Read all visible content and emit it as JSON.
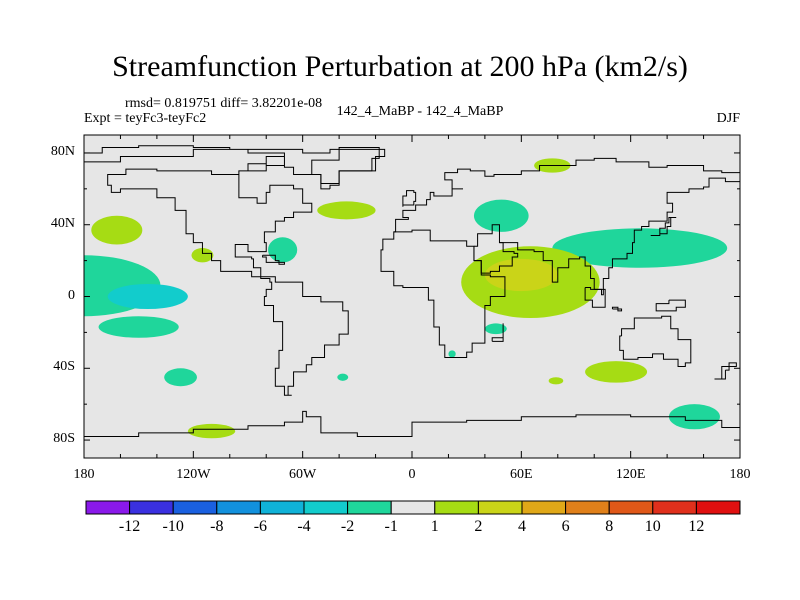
{
  "title": "Streamfunction Perturbation at 200 hPa (km2/s)",
  "stats": "rmsd= 0.819751 diff= 3.82201e-08",
  "experiment": "Expt = teyFc3-teyFc2",
  "comparison": "142_4_MaBP - 142_4_MaBP",
  "season": "DJF",
  "chart_data": {
    "type": "contour-map",
    "variable": "Streamfunction Perturbation",
    "units": "km2/s",
    "level": "200 hPa",
    "lon_range": [
      -180,
      180
    ],
    "lat_range": [
      -90,
      90
    ],
    "y_ticks": [
      {
        "lat": 80,
        "label": "80N"
      },
      {
        "lat": 40,
        "label": "40N"
      },
      {
        "lat": 0,
        "label": "0"
      },
      {
        "lat": -40,
        "label": "40S"
      },
      {
        "lat": -80,
        "label": "80S"
      }
    ],
    "x_ticks": [
      {
        "lon": -180,
        "label": "180"
      },
      {
        "lon": -120,
        "label": "120W"
      },
      {
        "lon": -60,
        "label": "60W"
      },
      {
        "lon": 0,
        "label": "0"
      },
      {
        "lon": 60,
        "label": "60E"
      },
      {
        "lon": 120,
        "label": "120E"
      },
      {
        "lon": 180,
        "label": "180"
      }
    ],
    "colorbar": {
      "levels": [
        "-12",
        "-10",
        "-8",
        "-6",
        "-4",
        "-2",
        "-1",
        "1",
        "2",
        "4",
        "6",
        "8",
        "10",
        "12"
      ],
      "colors": [
        "#8a19ea",
        "#3a30e0",
        "#1a60e0",
        "#1291dd",
        "#10b2d8",
        "#12cccc",
        "#1fd69b",
        "#e6e6e6",
        "#a6dc14",
        "#cad418",
        "#e0a818",
        "#e0801a",
        "#e05818",
        "#e0301c",
        "#e01010"
      ]
    },
    "features": [
      {
        "name": "south-pacific-negative",
        "lon": -180,
        "lat": 6,
        "rx": 42,
        "ry": 17,
        "color": "#1fd69b"
      },
      {
        "name": "south-pacific-core",
        "lon": -145,
        "lat": 0,
        "rx": 22,
        "ry": 7,
        "color": "#12cccc"
      },
      {
        "name": "north-pacific-blob",
        "lon": -162,
        "lat": 37,
        "rx": 14,
        "ry": 8,
        "color": "#a6dc14"
      },
      {
        "name": "hawaii-blob",
        "lon": -115,
        "lat": 23,
        "rx": 6,
        "ry": 4,
        "color": "#a6dc14"
      },
      {
        "name": "sp-negative-band",
        "lon": -150,
        "lat": -17,
        "rx": 22,
        "ry": 6,
        "color": "#1fd69b"
      },
      {
        "name": "sp-negative-south",
        "lon": -127,
        "lat": -45,
        "rx": 9,
        "ry": 5,
        "color": "#1fd69b"
      },
      {
        "name": "sp-positive-south",
        "lon": -110,
        "lat": -75,
        "rx": 13,
        "ry": 4,
        "color": "#a6dc14"
      },
      {
        "name": "gulf-negative",
        "lon": -71,
        "lat": 26,
        "rx": 8,
        "ry": 7,
        "color": "#1fd69b"
      },
      {
        "name": "atlantic-positive",
        "lon": -36,
        "lat": 48,
        "rx": 16,
        "ry": 5,
        "color": "#a6dc14"
      },
      {
        "name": "europe-negative",
        "lon": 49,
        "lat": 45,
        "rx": 15,
        "ry": 9,
        "color": "#1fd69b"
      },
      {
        "name": "arctic-positive",
        "lon": 77,
        "lat": 73,
        "rx": 10,
        "ry": 4,
        "color": "#a6dc14"
      },
      {
        "name": "asia-negative-band",
        "lon": 125,
        "lat": 27,
        "rx": 48,
        "ry": 11,
        "color": "#1fd69b"
      },
      {
        "name": "africa-positive",
        "lon": 65,
        "lat": 8,
        "rx": 38,
        "ry": 20,
        "color": "#a6dc14"
      },
      {
        "name": "africa-core",
        "lon": 60,
        "lat": 12,
        "rx": 20,
        "ry": 9,
        "color": "#cad418"
      },
      {
        "name": "indian-ocean-positive",
        "lon": 46,
        "lat": -18,
        "rx": 6,
        "ry": 3,
        "color": "#1fd69b"
      },
      {
        "name": "south-atlantic-small",
        "lon": -38,
        "lat": -45,
        "rx": 3,
        "ry": 2,
        "color": "#1fd69b"
      },
      {
        "name": "sa-small",
        "lon": 22,
        "lat": -32,
        "rx": 2,
        "ry": 2,
        "color": "#1fd69b"
      },
      {
        "name": "indian-south-positive",
        "lon": 79,
        "lat": -47,
        "rx": 4,
        "ry": 2,
        "color": "#a6dc14"
      },
      {
        "name": "indian-south-band",
        "lon": 112,
        "lat": -42,
        "rx": 17,
        "ry": 6,
        "color": "#a6dc14"
      },
      {
        "name": "southern-ocean-negative",
        "lon": 155,
        "lat": -67,
        "rx": 14,
        "ry": 7,
        "color": "#1fd69b"
      }
    ],
    "coastlines": [
      [
        [
          -180,
          80
        ],
        [
          -170,
          83
        ],
        [
          -150,
          84
        ],
        [
          -120,
          83
        ],
        [
          -100,
          82
        ],
        [
          -80,
          82
        ],
        [
          -60,
          80
        ],
        [
          -45,
          82
        ],
        [
          -20,
          82
        ],
        [
          -15,
          78
        ],
        [
          -20,
          70
        ],
        [
          -40,
          63
        ],
        [
          -50,
          68
        ],
        [
          -65,
          72
        ],
        [
          -70,
          78
        ],
        [
          -80,
          70
        ],
        [
          -95,
          62
        ],
        [
          -95,
          55
        ],
        [
          -85,
          52
        ],
        [
          -80,
          58
        ],
        [
          -78,
          62
        ],
        [
          -65,
          60
        ],
        [
          -60,
          52
        ],
        [
          -55,
          47
        ],
        [
          -65,
          44
        ],
        [
          -70,
          42
        ],
        [
          -75,
          36
        ],
        [
          -81,
          30
        ],
        [
          -80,
          25
        ],
        [
          -90,
          29
        ],
        [
          -97,
          27
        ],
        [
          -97,
          22
        ],
        [
          -88,
          21
        ],
        [
          -87,
          16
        ],
        [
          -83,
          10
        ],
        [
          -78,
          8
        ],
        [
          -77,
          4
        ],
        [
          -80,
          0
        ],
        [
          -81,
          -5
        ],
        [
          -76,
          -14
        ],
        [
          -71,
          -20
        ],
        [
          -71,
          -30
        ],
        [
          -73,
          -40
        ],
        [
          -75,
          -50
        ],
        [
          -70,
          -55
        ],
        [
          -66,
          -55
        ],
        [
          -68,
          -50
        ],
        [
          -65,
          -42
        ],
        [
          -58,
          -38
        ],
        [
          -55,
          -34
        ],
        [
          -48,
          -27
        ],
        [
          -40,
          -21
        ],
        [
          -35,
          -8
        ],
        [
          -38,
          -3
        ],
        [
          -50,
          0
        ],
        [
          -60,
          8
        ],
        [
          -75,
          11
        ],
        [
          -88,
          14
        ],
        [
          -105,
          20
        ],
        [
          -110,
          24
        ],
        [
          -115,
          30
        ],
        [
          -120,
          35
        ],
        [
          -124,
          40
        ],
        [
          -124,
          48
        ],
        [
          -130,
          55
        ],
        [
          -140,
          60
        ],
        [
          -152,
          60
        ],
        [
          -160,
          58
        ],
        [
          -165,
          62
        ],
        [
          -167,
          68
        ],
        [
          -157,
          71
        ],
        [
          -140,
          70
        ],
        [
          -128,
          70
        ],
        [
          -110,
          68
        ],
        [
          -95,
          70
        ],
        [
          -90,
          74
        ],
        [
          -80,
          73
        ],
        [
          -70,
          80
        ],
        [
          -90,
          82
        ],
        [
          -120,
          78
        ],
        [
          -160,
          75
        ],
        [
          -180,
          72
        ]
      ],
      [
        [
          -17,
          21
        ],
        [
          -17,
          14
        ],
        [
          -10,
          6
        ],
        [
          -5,
          5
        ],
        [
          5,
          5
        ],
        [
          9,
          2
        ],
        [
          9,
          -2
        ],
        [
          12,
          -10
        ],
        [
          12,
          -17
        ],
        [
          15,
          -27
        ],
        [
          18,
          -34
        ],
        [
          22,
          -34
        ],
        [
          30,
          -31
        ],
        [
          33,
          -26
        ],
        [
          40,
          -15
        ],
        [
          40,
          -5
        ],
        [
          43,
          0
        ],
        [
          51,
          11
        ],
        [
          43,
          12
        ],
        [
          38,
          20
        ],
        [
          34,
          28
        ],
        [
          30,
          31
        ],
        [
          20,
          31
        ],
        [
          10,
          37
        ],
        [
          0,
          36
        ],
        [
          -6,
          36
        ],
        [
          -10,
          32
        ],
        [
          -16,
          26
        ],
        [
          -17,
          21
        ]
      ],
      [
        [
          -10,
          36
        ],
        [
          -9,
          43
        ],
        [
          -2,
          44
        ],
        [
          -5,
          48
        ],
        [
          2,
          51
        ],
        [
          8,
          54
        ],
        [
          10,
          58
        ],
        [
          12,
          56
        ],
        [
          20,
          56
        ],
        [
          22,
          60
        ],
        [
          28,
          60
        ],
        [
          22,
          65
        ],
        [
          18,
          69
        ],
        [
          25,
          71
        ],
        [
          32,
          70
        ],
        [
          40,
          67
        ],
        [
          45,
          68
        ],
        [
          60,
          70
        ],
        [
          70,
          73
        ],
        [
          80,
          73
        ],
        [
          90,
          76
        ],
        [
          100,
          77
        ],
        [
          112,
          75
        ],
        [
          130,
          72
        ],
        [
          140,
          73
        ],
        [
          160,
          70
        ],
        [
          170,
          69
        ],
        [
          180,
          67
        ]
      ],
      [
        [
          34,
          28
        ],
        [
          36,
          35
        ],
        [
          44,
          40
        ],
        [
          48,
          30
        ],
        [
          50,
          25
        ],
        [
          56,
          24
        ],
        [
          58,
          22
        ],
        [
          55,
          17
        ],
        [
          48,
          14
        ],
        [
          43,
          13
        ],
        [
          38,
          20
        ],
        [
          34,
          28
        ]
      ],
      [
        [
          48,
          30
        ],
        [
          58,
          26
        ],
        [
          67,
          25
        ],
        [
          72,
          20
        ],
        [
          77,
          8
        ],
        [
          80,
          13
        ],
        [
          80,
          16
        ],
        [
          86,
          21
        ],
        [
          92,
          22
        ],
        [
          95,
          17
        ],
        [
          98,
          10
        ],
        [
          100,
          4
        ],
        [
          104,
          1
        ],
        [
          105,
          10
        ],
        [
          108,
          16
        ],
        [
          110,
          21
        ],
        [
          118,
          24
        ],
        [
          121,
          30
        ],
        [
          122,
          37
        ],
        [
          126,
          39
        ],
        [
          130,
          42
        ],
        [
          140,
          47
        ],
        [
          143,
          52
        ],
        [
          140,
          58
        ],
        [
          152,
          60
        ],
        [
          160,
          61
        ],
        [
          163,
          66
        ],
        [
          172,
          64
        ],
        [
          180,
          66
        ]
      ],
      [
        [
          115,
          -22
        ],
        [
          114,
          -30
        ],
        [
          116,
          -35
        ],
        [
          124,
          -34
        ],
        [
          132,
          -32
        ],
        [
          138,
          -35
        ],
        [
          146,
          -39
        ],
        [
          150,
          -37
        ],
        [
          153,
          -28
        ],
        [
          153,
          -24
        ],
        [
          146,
          -18
        ],
        [
          142,
          -11
        ],
        [
          137,
          -12
        ],
        [
          130,
          -12
        ],
        [
          122,
          -18
        ],
        [
          115,
          -22
        ]
      ],
      [
        [
          -45,
          60
        ],
        [
          -50,
          68
        ],
        [
          -55,
          76
        ],
        [
          -40,
          83
        ],
        [
          -20,
          83
        ],
        [
          -18,
          77
        ],
        [
          -22,
          70
        ],
        [
          -40,
          62
        ],
        [
          -45,
          60
        ]
      ],
      [
        [
          -180,
          -78
        ],
        [
          -150,
          -76
        ],
        [
          -120,
          -74
        ],
        [
          -90,
          -72
        ],
        [
          -70,
          -70
        ],
        [
          -60,
          -64
        ],
        [
          -58,
          -67
        ],
        [
          -50,
          -76
        ],
        [
          -30,
          -78
        ],
        [
          0,
          -70
        ],
        [
          30,
          -69
        ],
        [
          60,
          -67
        ],
        [
          90,
          -66
        ],
        [
          120,
          -67
        ],
        [
          150,
          -69
        ],
        [
          170,
          -73
        ],
        [
          180,
          -77
        ]
      ],
      [
        [
          131,
          34
        ],
        [
          136,
          35
        ],
        [
          140,
          39
        ],
        [
          142,
          44
        ],
        [
          145,
          44
        ],
        [
          141,
          41
        ],
        [
          139,
          38
        ],
        [
          136,
          34
        ],
        [
          131,
          34
        ]
      ],
      [
        [
          -5,
          50
        ],
        [
          -5,
          56
        ],
        [
          -3,
          59
        ],
        [
          1,
          58
        ],
        [
          2,
          53
        ],
        [
          1,
          51
        ],
        [
          -5,
          50
        ]
      ],
      [
        [
          95,
          5
        ],
        [
          98,
          4
        ],
        [
          106,
          -6
        ],
        [
          99,
          -2
        ],
        [
          95,
          5
        ]
      ],
      [
        [
          110,
          -7
        ],
        [
          115,
          -8
        ],
        [
          113,
          -6
        ],
        [
          110,
          -7
        ]
      ],
      [
        [
          141,
          -2
        ],
        [
          150,
          -6
        ],
        [
          145,
          -8
        ],
        [
          138,
          -8
        ],
        [
          134,
          -4
        ],
        [
          141,
          -2
        ]
      ],
      [
        [
          44,
          -25
        ],
        [
          50,
          -15
        ],
        [
          50,
          -23
        ],
        [
          44,
          -25
        ]
      ],
      [
        [
          172,
          -41
        ],
        [
          174,
          -37
        ],
        [
          178,
          -39
        ],
        [
          170,
          -46
        ],
        [
          166,
          -46
        ],
        [
          172,
          -41
        ]
      ],
      [
        [
          -82,
          23
        ],
        [
          -75,
          20
        ],
        [
          -73,
          18
        ],
        [
          -70,
          19
        ],
        [
          -80,
          22
        ],
        [
          -82,
          23
        ]
      ]
    ]
  }
}
